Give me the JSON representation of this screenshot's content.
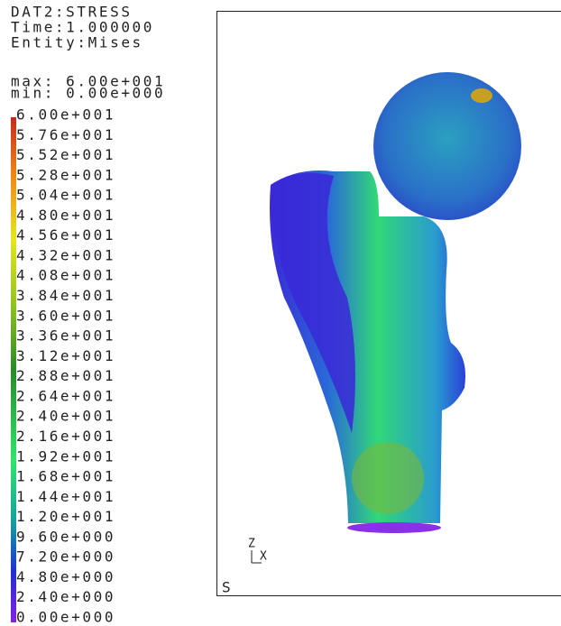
{
  "header": {
    "lines": [
      "DAT2:STRESS",
      "Time:1.000000",
      "Entity:Mises"
    ]
  },
  "range": {
    "max": "max: 6.00e+001",
    "min": "min: 0.00e+000"
  },
  "legend": {
    "labels": [
      "6.00e+001",
      "5.76e+001",
      "5.52e+001",
      "5.28e+001",
      "5.04e+001",
      "4.80e+001",
      "4.56e+001",
      "4.32e+001",
      "4.08e+001",
      "3.84e+001",
      "3.60e+001",
      "3.36e+001",
      "3.12e+001",
      "2.88e+001",
      "2.64e+001",
      "2.40e+001",
      "2.16e+001",
      "1.92e+001",
      "1.68e+001",
      "1.44e+001",
      "1.20e+001",
      "9.60e+000",
      "7.20e+000",
      "4.80e+000",
      "2.40e+000",
      "0.00e+000"
    ]
  },
  "viewport": {
    "label": "S",
    "axis_z": "Z",
    "axis_x": "X"
  }
}
